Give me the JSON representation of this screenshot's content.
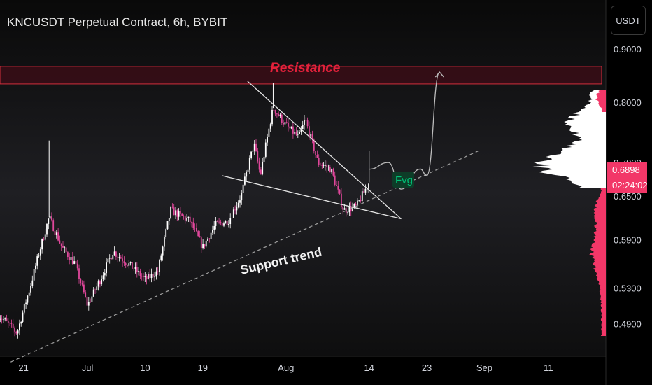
{
  "header": {
    "title": "KNCUSDT Perpetual Contract, 6h, BYBIT",
    "currency_label": "USDT"
  },
  "colors": {
    "background": "#000000",
    "bull": "#ffffff",
    "bear": "#e0479b",
    "resistance": "#d32f3c",
    "resistance_fill": "#3a0d16",
    "accent": "#f23768",
    "fvg": "#00c277",
    "grid_axis_text": "#d1d4dc"
  },
  "chart_data": {
    "type": "candlestick",
    "timeframe": "6h",
    "exchange": "BYBIT",
    "symbol": "KNCUSDT Perpetual Contract",
    "x_ticks": [
      "21",
      "Jul",
      "10",
      "19",
      "Aug",
      "14",
      "23",
      "Sep",
      "11"
    ],
    "y_ticks": [
      0.49,
      0.53,
      0.59,
      0.65,
      0.7,
      0.8,
      0.9
    ],
    "y_tick_labels": [
      "0.4900",
      "0.5300",
      "0.5900",
      "0.6500",
      "0.7000",
      "0.8000",
      "0.9000"
    ],
    "ylim": [
      0.45,
      0.96
    ],
    "current_price": "0.6898",
    "countdown": "02:24:02",
    "path": [
      [
        "2023-06-17",
        0.5
      ],
      [
        "2023-06-20",
        0.48
      ],
      [
        "2023-06-22",
        0.53
      ],
      [
        "2023-06-25",
        0.62
      ],
      [
        "2023-06-27",
        0.58
      ],
      [
        "2023-06-29",
        0.56
      ],
      [
        "2023-07-01",
        0.51
      ],
      [
        "2023-07-03",
        0.54
      ],
      [
        "2023-07-05",
        0.575
      ],
      [
        "2023-07-08",
        0.555
      ],
      [
        "2023-07-10",
        0.54
      ],
      [
        "2023-07-12",
        0.55
      ],
      [
        "2023-07-14",
        0.63
      ],
      [
        "2023-07-17",
        0.615
      ],
      [
        "2023-07-19",
        0.58
      ],
      [
        "2023-07-21",
        0.61
      ],
      [
        "2023-07-23",
        0.615
      ],
      [
        "2023-07-25",
        0.65
      ],
      [
        "2023-07-27",
        0.73
      ],
      [
        "2023-07-28",
        0.68
      ],
      [
        "2023-07-30",
        0.79
      ],
      [
        "2023-08-01",
        0.76
      ],
      [
        "2023-08-03",
        0.74
      ],
      [
        "2023-08-04",
        0.77
      ],
      [
        "2023-08-06",
        0.7
      ],
      [
        "2023-08-08",
        0.69
      ],
      [
        "2023-08-10",
        0.63
      ],
      [
        "2023-08-12",
        0.635
      ],
      [
        "2023-08-14",
        0.67
      ],
      [
        "2023-08-14",
        0.6898
      ]
    ],
    "series": [
      {
        "name": "",
        "type": "candlestick"
      },
      {
        "name": "Resistance",
        "type": "zone",
        "y_range": [
          0.833,
          0.866
        ]
      },
      {
        "name": "Support trend",
        "type": "trendline",
        "points": [
          [
            "2023-06-19",
            0.45
          ],
          [
            "2023-08-31",
            0.718
          ]
        ]
      },
      {
        "name": "",
        "type": "trendline",
        "points": [
          [
            "2023-07-26",
            0.838
          ],
          [
            "2023-08-19",
            0.618
          ]
        ]
      },
      {
        "name": "",
        "type": "trendline",
        "points": [
          [
            "2023-07-22",
            0.68
          ],
          [
            "2023-08-19",
            0.618
          ]
        ]
      },
      {
        "name": "",
        "type": "projection",
        "points": [
          [
            "2023-08-14",
            0.6898
          ],
          [
            "2023-08-17",
            0.7
          ],
          [
            "2023-08-19",
            0.66
          ],
          [
            "2023-08-22",
            0.69
          ],
          [
            "2023-08-23",
            0.68
          ],
          [
            "2023-08-25",
            0.855
          ]
        ]
      }
    ],
    "annotations": [
      "Resistance",
      "Support trend",
      "Fvg"
    ],
    "volume_profile": true,
    "grid": false,
    "legend": "none"
  }
}
